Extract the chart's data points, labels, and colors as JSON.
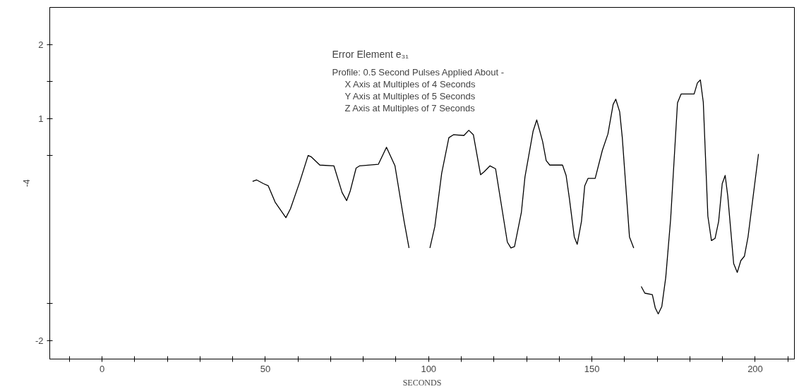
{
  "chart_data": {
    "type": "line",
    "title": "Error Element e₃₁",
    "xlabel": "SECONDS",
    "ylabel": "-4",
    "annotations": [
      "Profile: 0.5 Second Pulses Applied About -",
      "X Axis at Multiples of 4 Seconds",
      "Y Axis at Multiples of 5 Seconds",
      "Z Axis at Multiples of 7 Seconds"
    ],
    "x": [
      46.1,
      47.3,
      49.4,
      50.9,
      53.0,
      56.3,
      57.7,
      60.6,
      63.1,
      64.1,
      66.7,
      71.0,
      73.5,
      74.9,
      76.0,
      77.8,
      78.9,
      84.6,
      87.1,
      89.7,
      92.5,
      94.0,
      97.0,
      100.4,
      101.9,
      104.0,
      106.2,
      107.6,
      110.8,
      112.3,
      113.7,
      115.9,
      117.0,
      118.8,
      120.5,
      124.1,
      125.2,
      126.3,
      128.4,
      129.5,
      132.0,
      133.1,
      134.9,
      136.0,
      137.1,
      141.0,
      142.1,
      143.1,
      144.6,
      145.5,
      146.8,
      147.8,
      148.8,
      151.0,
      153.2,
      154.9,
      156.5,
      157.3,
      158.5,
      159.3,
      161.5,
      162.8,
      164.0,
      165.1,
      166.2,
      168.5,
      169.4,
      170.3,
      171.4,
      172.6,
      174.1,
      176.2,
      177.3,
      181.3,
      182.3,
      183.2,
      184.1,
      185.5,
      186.6,
      187.7,
      188.8,
      189.9,
      190.8,
      191.6,
      193.4,
      194.5,
      195.6,
      196.7,
      197.8,
      201.0
    ],
    "values": [
      0.15,
      0.17,
      0.12,
      0.09,
      -0.13,
      -0.34,
      -0.22,
      0.15,
      0.5,
      0.48,
      0.37,
      0.36,
      0.0,
      -0.11,
      0.02,
      0.33,
      0.36,
      0.38,
      0.61,
      0.36,
      -0.39,
      -0.75,
      null,
      -0.75,
      -0.46,
      0.26,
      0.74,
      0.78,
      0.77,
      0.84,
      0.78,
      0.24,
      0.28,
      0.36,
      0.32,
      -0.67,
      -0.75,
      -0.73,
      -0.27,
      0.21,
      0.83,
      0.98,
      0.69,
      0.43,
      0.37,
      0.37,
      0.23,
      -0.08,
      -0.6,
      -0.7,
      -0.39,
      0.09,
      0.19,
      0.19,
      0.57,
      0.79,
      1.19,
      1.26,
      1.09,
      0.74,
      -0.6,
      -0.75,
      null,
      -1.27,
      -1.36,
      -1.38,
      -1.56,
      -1.64,
      -1.54,
      -1.15,
      -0.36,
      1.21,
      1.33,
      1.33,
      1.48,
      1.52,
      1.22,
      -0.32,
      -0.65,
      -0.62,
      -0.39,
      0.12,
      0.23,
      -0.05,
      -0.96,
      -1.08,
      -0.92,
      -0.86,
      -0.6,
      0.52
    ],
    "color": "#000000",
    "xlim": [
      -16,
      212
    ],
    "ylim": [
      -2.25,
      2.5
    ],
    "xticks": [
      {
        "value": -10,
        "label": null
      },
      0,
      {
        "value": 10,
        "label": null
      },
      {
        "value": 20,
        "label": null
      },
      {
        "value": 30,
        "label": null
      },
      {
        "value": 40,
        "label": null
      },
      50,
      {
        "value": 60,
        "label": null
      },
      {
        "value": 70,
        "label": null
      },
      {
        "value": 80,
        "label": null
      },
      {
        "value": 90,
        "label": null
      },
      100,
      {
        "value": 110,
        "label": null
      },
      {
        "value": 120,
        "label": null
      },
      {
        "value": 130,
        "label": null
      },
      {
        "value": 140,
        "label": null
      },
      150,
      {
        "value": 160,
        "label": null
      },
      {
        "value": 170,
        "label": null
      },
      {
        "value": 180,
        "label": null
      },
      {
        "value": 190,
        "label": null
      },
      200,
      {
        "value": 210,
        "label": null
      }
    ],
    "yticks": [
      -2,
      {
        "value": -1.5,
        "label": null
      },
      {
        "value": 0.5,
        "label": null
      },
      1,
      {
        "value": 1.5,
        "label": null
      },
      2
    ],
    "grid": false,
    "marker": "none",
    "line_style": "solid"
  }
}
